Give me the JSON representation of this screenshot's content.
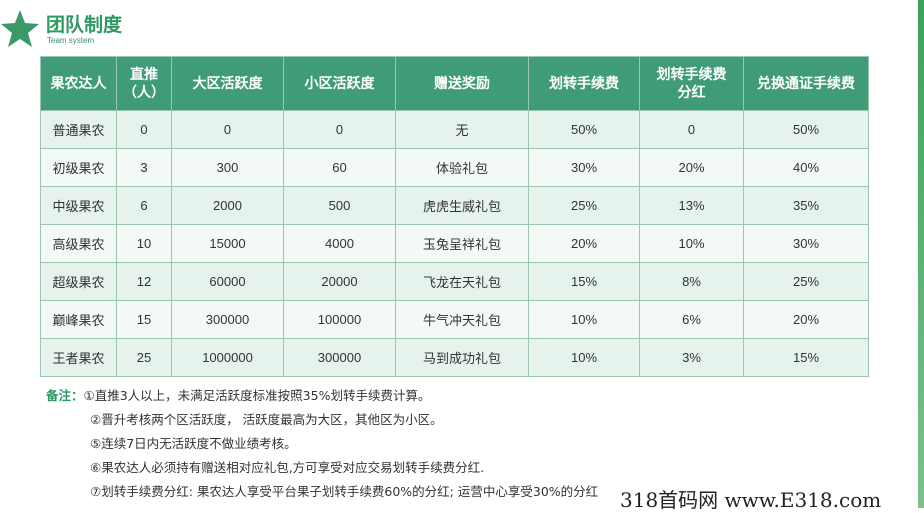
{
  "header": {
    "title": "团队制度",
    "subtitle": "Team system"
  },
  "table": {
    "headers": [
      "果农达人",
      "直推\n（人）",
      "大区活跃度",
      "小区活跃度",
      "赠送奖励",
      "划转手续费",
      "划转手续费\n分红",
      "兑换通证手续费"
    ],
    "rows": [
      [
        "普通果农",
        "0",
        "0",
        "0",
        "无",
        "50%",
        "0",
        "50%"
      ],
      [
        "初级果农",
        "3",
        "300",
        "60",
        "体验礼包",
        "30%",
        "20%",
        "40%"
      ],
      [
        "中级果农",
        "6",
        "2000",
        "500",
        "虎虎生威礼包",
        "25%",
        "13%",
        "35%"
      ],
      [
        "高级果农",
        "10",
        "15000",
        "4000",
        "玉兔呈祥礼包",
        "20%",
        "10%",
        "30%"
      ],
      [
        "超级果农",
        "12",
        "60000",
        "20000",
        "飞龙在天礼包",
        "15%",
        "8%",
        "25%"
      ],
      [
        "巅峰果农",
        "15",
        "300000",
        "100000",
        "牛气冲天礼包",
        "10%",
        "6%",
        "20%"
      ],
      [
        "王者果农",
        "25",
        "1000000",
        "300000",
        "马到成功礼包",
        "10%",
        "3%",
        "15%"
      ]
    ]
  },
  "notes": {
    "label": "备注：",
    "items": [
      "①直推3人以上，未满足活跃度标准按照35%划转手续费计算。",
      "②晋升考核两个区活跃度， 活跃度最高为大区，其他区为小区。",
      "⑤连续7日内无活跃度不做业绩考核。",
      "⑥果农达人必须持有赠送相对应礼包,方可享受对应交易划转手续费分红.",
      "⑦划转手续费分红: 果农达人享受平台果子划转手续费60%的分红;  运营中心享受30%的分红"
    ]
  },
  "watermark": "318首码网 www.E318.com",
  "colors": {
    "accent": "#2e9a63",
    "header_bg": "#3f9b78",
    "row_odd": "#e6f3ec",
    "row_even": "#f3f9f6"
  },
  "icons": {
    "logo": "star-icon"
  }
}
